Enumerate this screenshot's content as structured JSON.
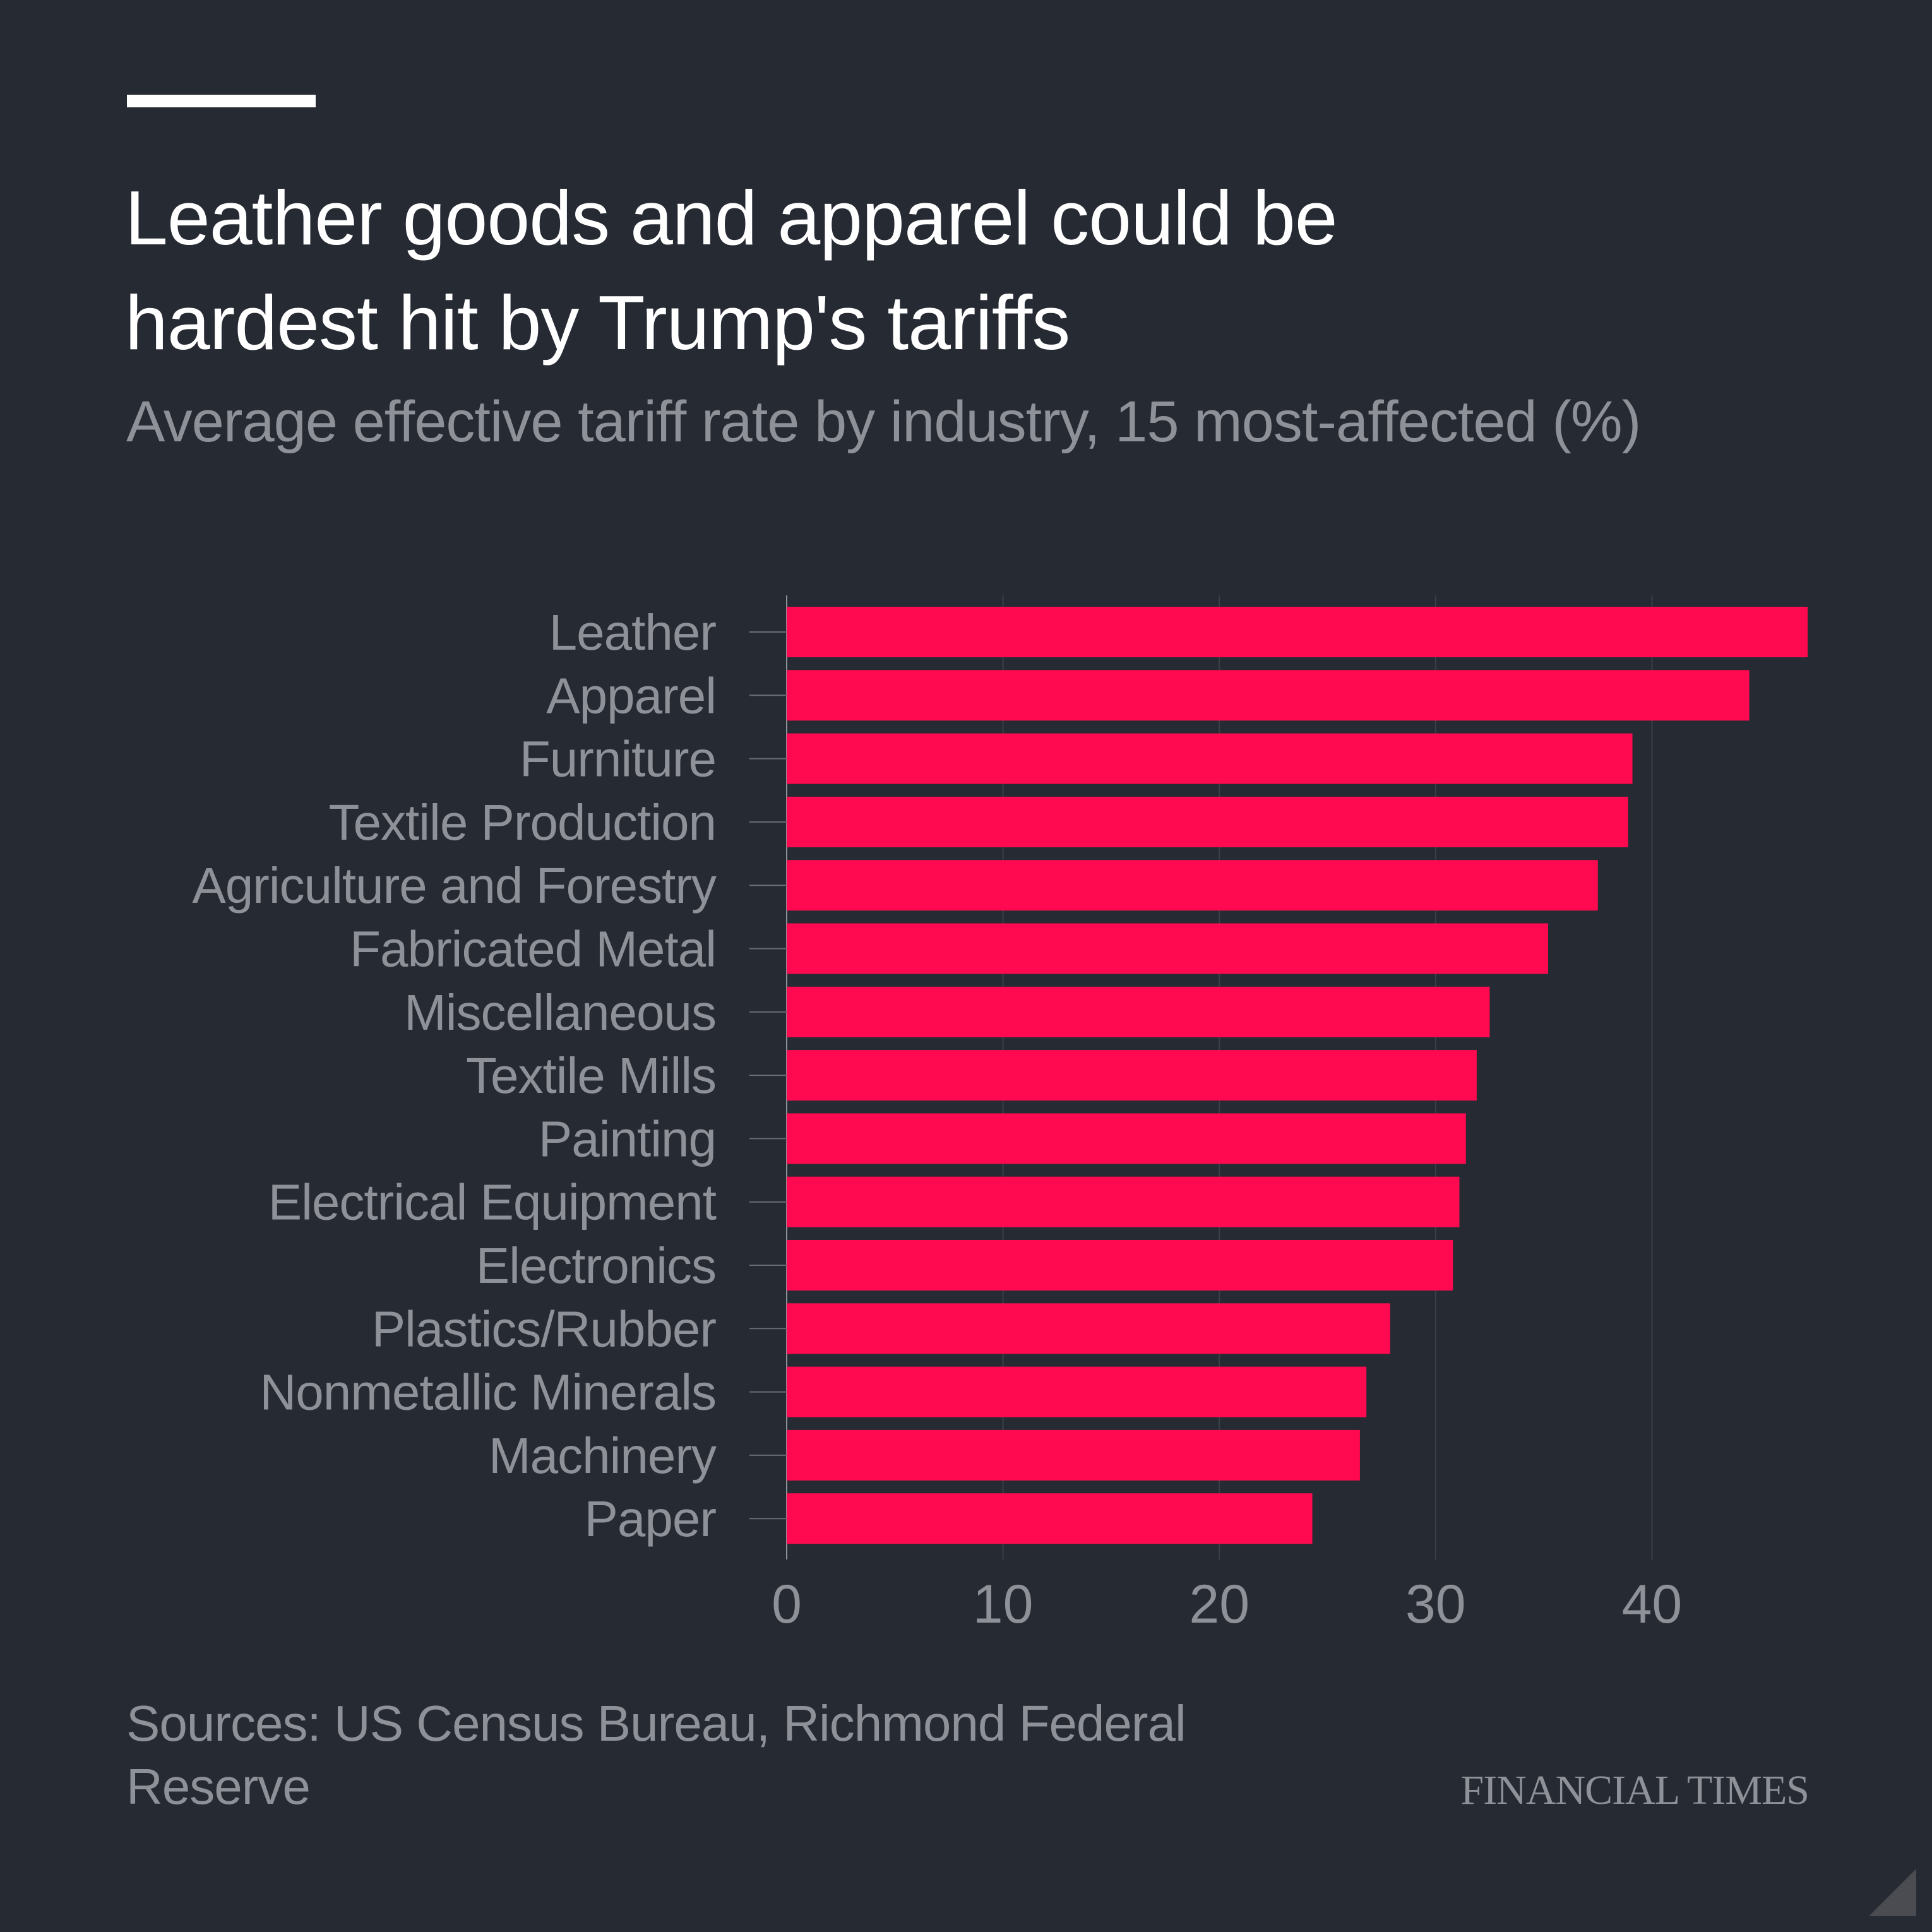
{
  "header": {
    "title": "Leather goods and apparel could be hardest hit by Trump's tariffs",
    "title_lines": [
      "Leather goods and apparel could be",
      "hardest hit by Trump's tariffs"
    ],
    "subtitle": "Average effective tariff rate by industry, 15 most-affected (%)"
  },
  "footer": {
    "source_lines": [
      "Sources: US Census Bureau, Richmond Federal",
      "Reserve"
    ],
    "logo": "FINANCIAL TIMES"
  },
  "colors": {
    "background": "#262a33",
    "bar": "#ff0a50",
    "text_primary": "#ffffff",
    "text_secondary": "#8f9198",
    "gridline": "#3b3f48"
  },
  "chart_data": {
    "type": "bar",
    "orientation": "horizontal",
    "title": "Leather goods and apparel could be hardest hit by Trump's tariffs",
    "subtitle": "Average effective tariff rate by industry, 15 most-affected (%)",
    "xlabel": "",
    "ylabel": "",
    "categories": [
      "Leather",
      "Apparel",
      "Furniture",
      "Textile Production",
      "Agriculture and Forestry",
      "Fabricated Metal",
      "Miscellaneous",
      "Textile Mills",
      "Painting",
      "Electrical Equipment",
      "Electronics",
      "Plastics/Rubber",
      "Nonmetallic Minerals",
      "Machinery",
      "Paper"
    ],
    "values": [
      47.2,
      44.5,
      39.1,
      38.9,
      37.5,
      35.2,
      32.5,
      31.9,
      31.4,
      31.1,
      30.8,
      27.9,
      26.8,
      26.5,
      24.3
    ],
    "xlim": [
      0,
      47.5
    ],
    "xticks": [
      0,
      10,
      20,
      30,
      40
    ],
    "xtick_labels": [
      "0",
      "10",
      "20",
      "30",
      "40"
    ],
    "grid": "vertical",
    "legend": "none",
    "source": "Sources: US Census Bureau, Richmond Federal Reserve"
  }
}
